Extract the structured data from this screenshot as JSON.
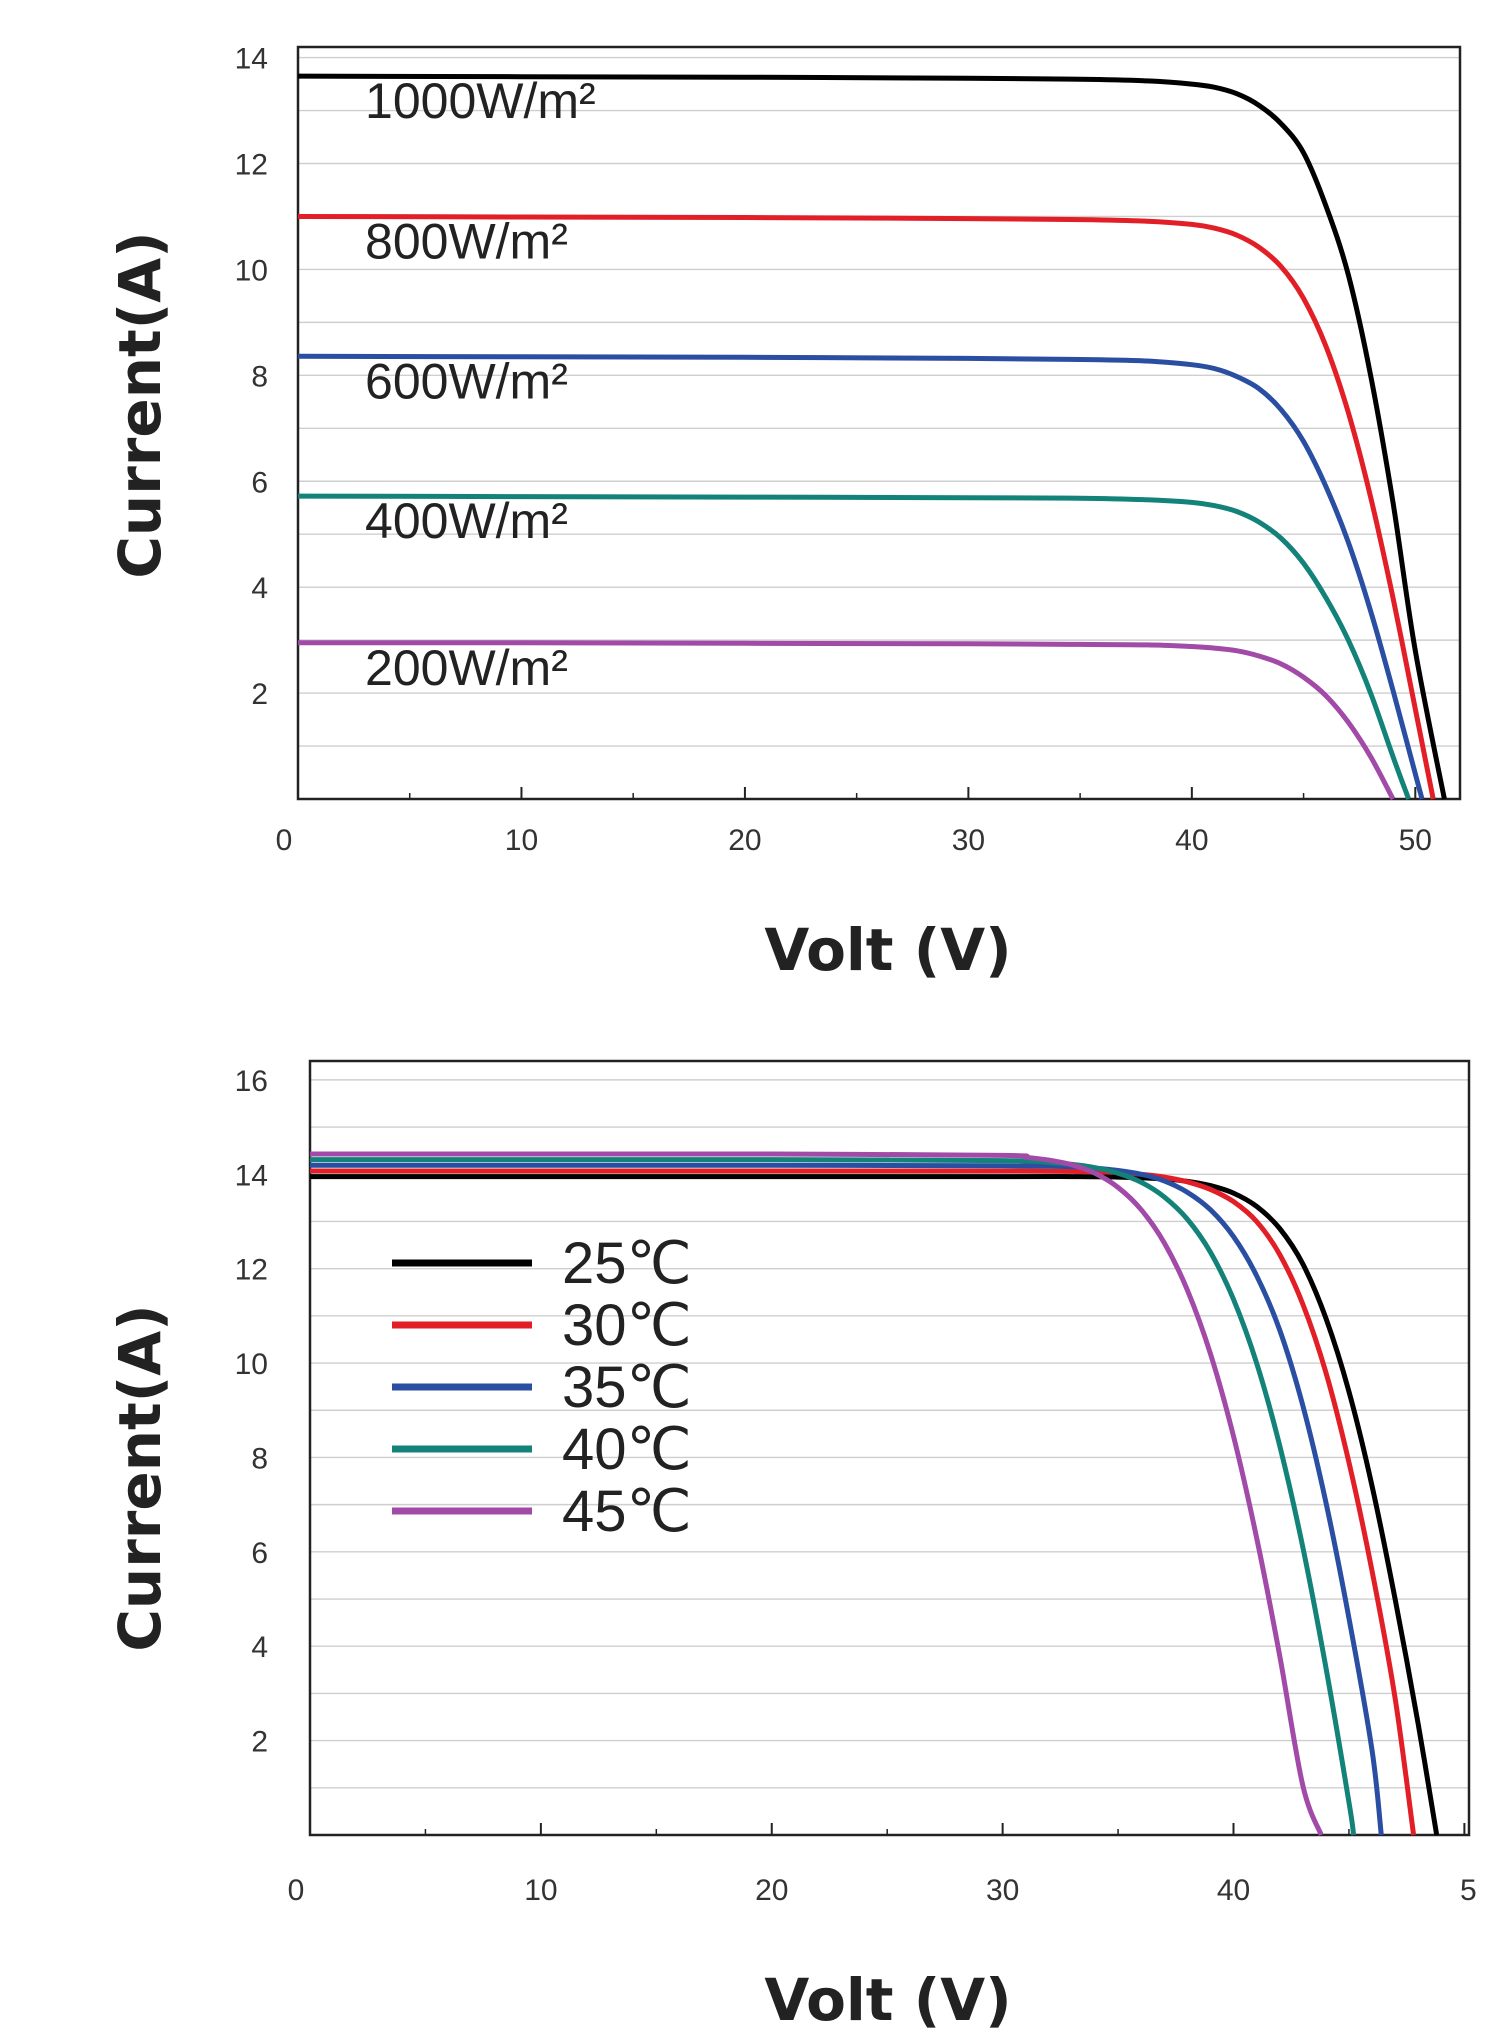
{
  "chart_data": [
    {
      "type": "line",
      "title": "",
      "xlabel": "Volt (V)",
      "ylabel": "Current(A)",
      "xlim": [
        0,
        52
      ],
      "ylim": [
        0,
        14.2
      ],
      "xticks": [
        "0",
        "10",
        "20",
        "30",
        "40",
        "50"
      ],
      "yticks": [
        "2",
        "4",
        "6",
        "8",
        "10",
        "12",
        "14"
      ],
      "grid": true,
      "legend": "inline labels above curves",
      "series": [
        {
          "name": "1000W/m²",
          "color": "#000000",
          "x": [
            0,
            10,
            20,
            30,
            35,
            38,
            40,
            41,
            42,
            43,
            44,
            45,
            46,
            47,
            48,
            49,
            50,
            51.3
          ],
          "values": [
            13.65,
            13.64,
            13.63,
            13.61,
            13.59,
            13.56,
            13.5,
            13.44,
            13.32,
            13.1,
            12.75,
            12.2,
            11.2,
            9.9,
            8.0,
            5.6,
            2.8,
            0
          ]
        },
        {
          "name": "800W/m²",
          "color": "#e21f26",
          "x": [
            0,
            10,
            20,
            30,
            35,
            38,
            40,
            41,
            42,
            43,
            44,
            45,
            46,
            47,
            48,
            49,
            50,
            50.8
          ],
          "values": [
            11.0,
            10.99,
            10.98,
            10.96,
            10.94,
            10.91,
            10.85,
            10.78,
            10.65,
            10.42,
            10.05,
            9.45,
            8.55,
            7.3,
            5.7,
            3.8,
            1.7,
            0
          ]
        },
        {
          "name": "600W/m²",
          "color": "#2a4ea2",
          "x": [
            0,
            10,
            20,
            30,
            35,
            38,
            40,
            41,
            42,
            43,
            44,
            45,
            46,
            47,
            48,
            49,
            50.3
          ],
          "values": [
            8.36,
            8.35,
            8.34,
            8.32,
            8.3,
            8.27,
            8.2,
            8.13,
            7.98,
            7.75,
            7.35,
            6.75,
            5.9,
            4.85,
            3.55,
            2.05,
            0
          ]
        },
        {
          "name": "400W/m²",
          "color": "#138279",
          "x": [
            0,
            10,
            20,
            30,
            35,
            38,
            40,
            41,
            42,
            43,
            44,
            45,
            46,
            47,
            48,
            49,
            49.7
          ],
          "values": [
            5.72,
            5.71,
            5.7,
            5.69,
            5.68,
            5.65,
            5.6,
            5.54,
            5.43,
            5.23,
            4.92,
            4.45,
            3.8,
            3.0,
            2.0,
            0.8,
            0
          ]
        },
        {
          "name": "200W/m²",
          "color": "#a24aa7",
          "x": [
            0,
            10,
            20,
            30,
            35,
            38,
            40,
            41,
            42,
            43,
            44,
            45,
            46,
            47,
            48,
            49
          ],
          "values": [
            2.95,
            2.95,
            2.94,
            2.93,
            2.92,
            2.91,
            2.88,
            2.85,
            2.8,
            2.7,
            2.55,
            2.3,
            1.95,
            1.45,
            0.8,
            0
          ]
        }
      ]
    },
    {
      "type": "line",
      "title": "",
      "xlabel": "Volt (V)",
      "ylabel": "Current(A)",
      "xlim": [
        0,
        50.2
      ],
      "ylim": [
        0,
        16.4
      ],
      "xticks": [
        "0",
        "10",
        "20",
        "30",
        "40",
        "5"
      ],
      "yticks": [
        "2",
        "4",
        "6",
        "8",
        "10",
        "12",
        "14",
        "16"
      ],
      "grid": true,
      "legend": "upper-left",
      "series": [
        {
          "name": "25℃",
          "color": "#000000",
          "x": [
            0,
            10,
            20,
            30,
            33,
            35,
            37,
            38,
            39,
            40,
            41,
            42,
            43,
            44,
            45,
            46,
            47,
            48,
            48.8
          ],
          "values": [
            13.95,
            13.95,
            13.95,
            13.95,
            13.95,
            13.94,
            13.9,
            13.85,
            13.76,
            13.6,
            13.32,
            12.85,
            12.1,
            10.95,
            9.4,
            7.4,
            5.0,
            2.35,
            0
          ]
        },
        {
          "name": "30℃",
          "color": "#e21f26",
          "x": [
            0,
            10,
            20,
            30,
            33,
            35,
            36,
            37,
            38,
            39,
            40,
            41,
            42,
            43,
            44,
            45,
            46,
            47,
            47.8
          ],
          "values": [
            14.07,
            14.07,
            14.07,
            14.07,
            14.06,
            14.04,
            14.0,
            13.94,
            13.84,
            13.68,
            13.42,
            13.0,
            12.3,
            11.25,
            9.8,
            7.9,
            5.6,
            2.9,
            0
          ]
        },
        {
          "name": "35℃",
          "color": "#2a4ea2",
          "x": [
            0,
            10,
            20,
            30,
            33,
            34,
            35,
            36,
            37,
            38,
            39,
            40,
            41,
            42,
            43,
            44,
            45,
            46,
            46.4
          ],
          "values": [
            14.19,
            14.19,
            14.19,
            14.18,
            14.16,
            14.13,
            14.08,
            14.0,
            13.86,
            13.62,
            13.25,
            12.68,
            11.85,
            10.7,
            9.1,
            7.05,
            4.6,
            1.8,
            0
          ]
        },
        {
          "name": "40℃",
          "color": "#138279",
          "x": [
            0,
            10,
            20,
            30,
            32,
            33,
            34,
            35,
            36,
            37,
            38,
            39,
            40,
            41,
            42,
            43,
            44,
            45,
            45.2
          ],
          "values": [
            14.31,
            14.31,
            14.31,
            14.29,
            14.25,
            14.21,
            14.14,
            14.02,
            13.83,
            13.52,
            13.05,
            12.35,
            11.35,
            10.0,
            8.25,
            6.1,
            3.55,
            0.7,
            0
          ]
        },
        {
          "name": "45℃",
          "color": "#a24aa7",
          "x": [
            0,
            10,
            20,
            30,
            31,
            32,
            33,
            34,
            35,
            36,
            37,
            38,
            39,
            40,
            41,
            42,
            43,
            43.8
          ],
          "values": [
            14.43,
            14.43,
            14.43,
            14.4,
            14.36,
            14.3,
            14.2,
            14.02,
            13.72,
            13.25,
            12.55,
            11.55,
            10.2,
            8.45,
            6.3,
            3.8,
            1.05,
            0
          ]
        }
      ]
    }
  ]
}
